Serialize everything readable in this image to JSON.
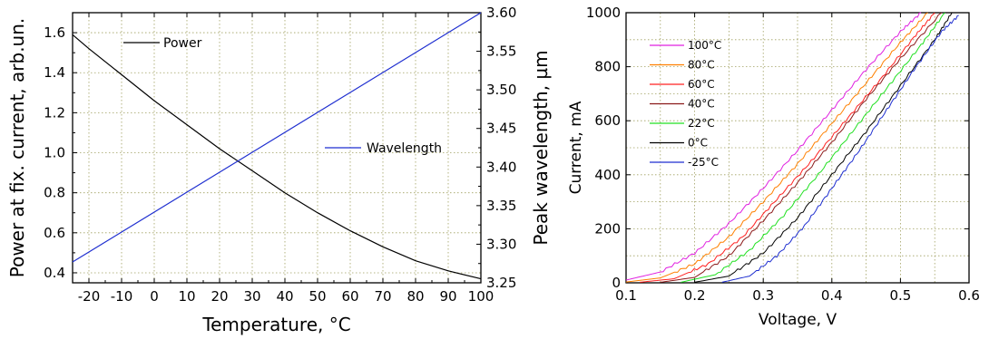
{
  "chart_data": [
    {
      "type": "line",
      "xlabel": "Temperature, °C",
      "ylabel": "Power at fix. current, arb.un.",
      "y2label": "Peak wavelength, µm",
      "xlim": [
        -25,
        100
      ],
      "ylim": [
        0.35,
        1.7
      ],
      "y2lim": [
        3.25,
        3.6
      ],
      "x_ticks": [
        -20,
        -10,
        0,
        10,
        20,
        30,
        40,
        50,
        60,
        70,
        80,
        90,
        100
      ],
      "x_tick_labels": [
        "-20",
        "-10",
        "0",
        "10",
        "20",
        "30",
        "40",
        "50",
        "60",
        "70",
        "80",
        "90",
        "100"
      ],
      "y_ticks": [
        0.4,
        0.6,
        0.8,
        1.0,
        1.2,
        1.4,
        1.6
      ],
      "y_tick_labels": [
        "0.4",
        "0.6",
        "0.8",
        "1.0",
        "1.2",
        "1.4",
        "1.6"
      ],
      "y2_ticks": [
        3.25,
        3.3,
        3.35,
        3.4,
        3.45,
        3.5,
        3.55,
        3.6
      ],
      "y2_tick_labels": [
        "3.25",
        "3.30",
        "3.35",
        "3.40",
        "3.45",
        "3.50",
        "3.55",
        "3.60"
      ],
      "grid": true,
      "series": [
        {
          "name": "Power",
          "axis": "left",
          "color": "#000000",
          "x": [
            -25,
            -20,
            -10,
            0,
            10,
            20,
            30,
            40,
            50,
            60,
            70,
            80,
            90,
            100
          ],
          "y": [
            1.59,
            1.52,
            1.39,
            1.26,
            1.14,
            1.02,
            0.91,
            0.8,
            0.7,
            0.61,
            0.53,
            0.46,
            0.41,
            0.37
          ]
        },
        {
          "name": "Wavelength",
          "axis": "right",
          "color": "#1f2fd0",
          "x": [
            -25,
            100
          ],
          "y": [
            3.277,
            3.6
          ]
        }
      ],
      "legend": [
        {
          "label": "Power",
          "color": "#000000",
          "position": "top-left"
        },
        {
          "label": "Wavelength",
          "color": "#1f2fd0",
          "position": "middle-right"
        }
      ]
    },
    {
      "type": "line",
      "xlabel": "Voltage, V",
      "ylabel": "Current, mA",
      "xlim": [
        0.1,
        0.6
      ],
      "ylim": [
        0,
        1000
      ],
      "x_ticks": [
        0.1,
        0.2,
        0.3,
        0.4,
        0.5,
        0.6
      ],
      "x_tick_labels": [
        "0.1",
        "0.2",
        "0.3",
        "0.4",
        "0.5",
        "0.6"
      ],
      "y_ticks": [
        0,
        200,
        400,
        600,
        800,
        1000
      ],
      "y_tick_labels": [
        "0",
        "200",
        "400",
        "600",
        "800",
        "1000"
      ],
      "grid": true,
      "legend_position": "top-left",
      "series": [
        {
          "name": "100°C",
          "color": "#e020e0",
          "x": [
            0.1,
            0.15,
            0.2,
            0.25,
            0.3,
            0.35,
            0.4,
            0.45,
            0.5,
            0.53
          ],
          "y": [
            10,
            40,
            110,
            220,
            350,
            490,
            640,
            790,
            930,
            1000
          ]
        },
        {
          "name": "80°C",
          "color": "#ff8000",
          "x": [
            0.1,
            0.15,
            0.2,
            0.25,
            0.3,
            0.35,
            0.4,
            0.45,
            0.5,
            0.54
          ],
          "y": [
            3,
            18,
            70,
            170,
            300,
            440,
            590,
            740,
            890,
            1000
          ]
        },
        {
          "name": "60°C",
          "color": "#ff2020",
          "x": [
            0.12,
            0.17,
            0.22,
            0.27,
            0.32,
            0.37,
            0.42,
            0.47,
            0.52,
            0.55
          ],
          "y": [
            2,
            15,
            70,
            170,
            310,
            450,
            600,
            750,
            910,
            1000
          ]
        },
        {
          "name": "40°C",
          "color": "#8b1a1a",
          "x": [
            0.15,
            0.2,
            0.25,
            0.3,
            0.35,
            0.4,
            0.45,
            0.5,
            0.56
          ],
          "y": [
            2,
            20,
            100,
            230,
            370,
            520,
            680,
            830,
            1000
          ]
        },
        {
          "name": "22°C",
          "color": "#20e020",
          "x": [
            0.18,
            0.23,
            0.28,
            0.33,
            0.38,
            0.43,
            0.48,
            0.53,
            0.565
          ],
          "y": [
            2,
            30,
            120,
            250,
            400,
            560,
            720,
            880,
            1000
          ]
        },
        {
          "name": "0°C",
          "color": "#000000",
          "x": [
            0.2,
            0.25,
            0.3,
            0.35,
            0.4,
            0.45,
            0.5,
            0.55,
            0.575
          ],
          "y": [
            2,
            25,
            110,
            240,
            400,
            560,
            730,
            900,
            1000
          ]
        },
        {
          "name": "-25°C",
          "color": "#1f2fd0",
          "x": [
            0.24,
            0.28,
            0.32,
            0.36,
            0.4,
            0.44,
            0.48,
            0.52,
            0.56,
            0.585
          ],
          "y": [
            2,
            25,
            100,
            210,
            350,
            490,
            640,
            790,
            930,
            990
          ]
        }
      ]
    }
  ]
}
